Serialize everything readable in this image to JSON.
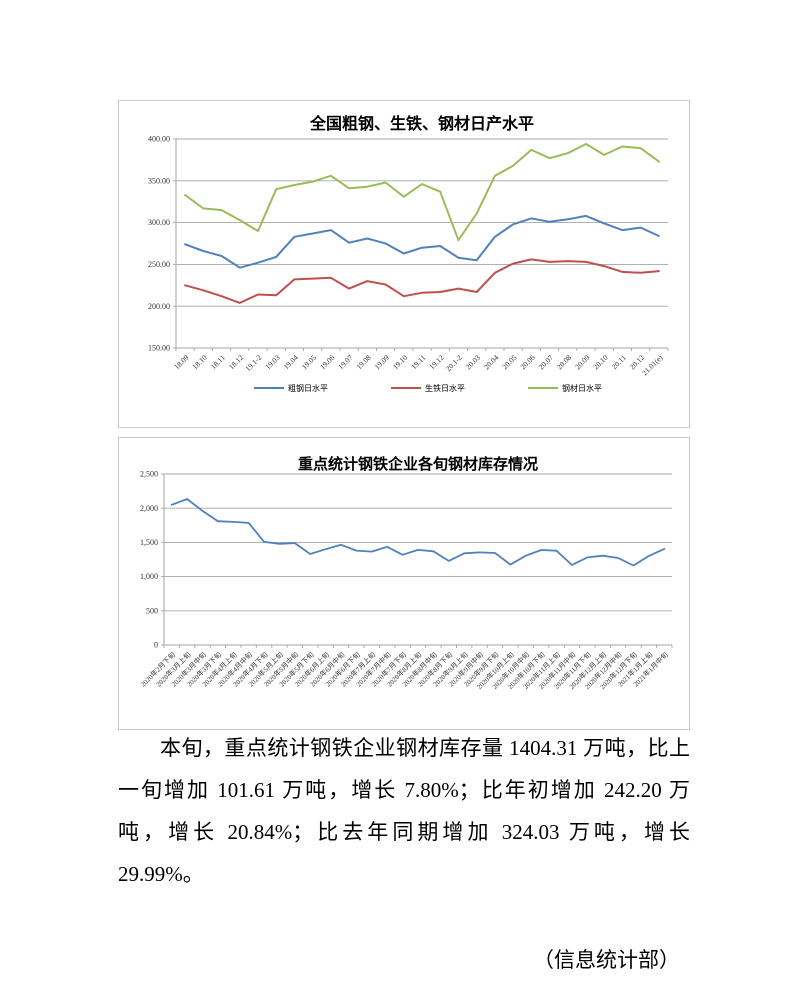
{
  "page": {
    "paragraph": "本旬，重点统计钢铁企业钢材库存量 1404.31 万吨，比上一旬增加 101.61 万吨，增长 7.80%；比年初增加 242.20 万吨，增长 20.84%；比去年同期增加 324.03 万吨，增长 29.99%。",
    "signature": "（信息统计部）"
  },
  "colors": {
    "crude_steel": "#4F81BD",
    "pig_iron": "#C0504D",
    "steel_products": "#9BBB59",
    "gridline": "#a6a6a6",
    "chart_border": "#c9c9c9"
  },
  "chart_data": [
    {
      "type": "line",
      "title": "全国粗钢、生铁、钢材日产水平",
      "xlabel": "",
      "ylabel": "",
      "ylim": [
        150,
        400
      ],
      "ytick_step": 50,
      "ytick_labels": [
        "150.00",
        "200.00",
        "250.00",
        "300.00",
        "350.00",
        "400.00"
      ],
      "grid": true,
      "legend_position": "bottom",
      "categories": [
        "18.09",
        "18.10",
        "18.11",
        "18.12",
        "19.1-2",
        "19.03",
        "19.04",
        "19.05",
        "19.06",
        "19.07",
        "19.08",
        "19.09",
        "19.10",
        "19.11",
        "19.12",
        "20.1-2",
        "20.03",
        "20.04",
        "20.05",
        "20.06",
        "20.07",
        "20.08",
        "20.09",
        "20.10",
        "20.11",
        "20.12",
        "21.01(e)"
      ],
      "series": [
        {
          "name": "粗钢日水平",
          "color": "#4F81BD",
          "values": [
            274,
            266,
            260,
            246,
            252,
            259,
            283,
            287,
            291,
            276,
            281,
            275,
            263,
            270,
            272,
            258,
            255,
            283,
            298,
            305,
            301,
            304,
            308,
            299,
            291,
            294,
            284
          ]
        },
        {
          "name": "生铁日水平",
          "color": "#C0504D",
          "values": [
            225,
            219,
            212,
            204,
            214,
            213,
            232,
            233,
            234,
            221,
            230,
            226,
            212,
            216,
            217,
            221,
            217,
            240,
            251,
            256,
            253,
            254,
            253,
            248,
            241,
            240,
            242
          ]
        },
        {
          "name": "钢材日水平",
          "color": "#9BBB59",
          "values": [
            333,
            317,
            315,
            303,
            290,
            340,
            345,
            349,
            356,
            341,
            343,
            348,
            331,
            346,
            337,
            279,
            311,
            356,
            368,
            387,
            377,
            383,
            394,
            381,
            391,
            389,
            373
          ]
        }
      ]
    },
    {
      "type": "line",
      "title": "重点统计钢铁企业各旬钢材库存情况",
      "xlabel": "",
      "ylabel": "",
      "ylim": [
        0,
        2500
      ],
      "ytick_step": 500,
      "ytick_labels": [
        "0",
        "500",
        "1,000",
        "1,500",
        "2,000",
        "2,500"
      ],
      "grid": true,
      "legend_position": "none",
      "categories": [
        "2020年2月下旬",
        "2020年3月上旬",
        "2020年3月中旬",
        "2020年3月下旬",
        "2020年4月上旬",
        "2020年4月中旬",
        "2020年4月下旬",
        "2020年5月上旬",
        "2020年5月中旬",
        "2020年5月下旬",
        "2020年6月上旬",
        "2020年6月中旬",
        "2020年6月下旬",
        "2020年7月上旬",
        "2020年7月中旬",
        "2020年7月下旬",
        "2020年8月上旬",
        "2020年8月中旬",
        "2020年8月下旬",
        "2020年9月上旬",
        "2020年9月中旬",
        "2020年9月下旬",
        "2020年10月上旬",
        "2020年10月中旬",
        "2020年10月下旬",
        "2020年11月上旬",
        "2020年11月中旬",
        "2020年11月下旬",
        "2020年12月上旬",
        "2020年12月中旬",
        "2020年12月下旬",
        "2021年1月上旬",
        "2021年1月中旬"
      ],
      "series": [
        {
          "name": "钢材库存",
          "color": "#4F81BD",
          "values": [
            2050,
            2135,
            1960,
            1810,
            1800,
            1785,
            1508,
            1480,
            1490,
            1330,
            1400,
            1465,
            1380,
            1365,
            1435,
            1318,
            1390,
            1370,
            1230,
            1340,
            1354,
            1345,
            1175,
            1306,
            1389,
            1379,
            1169,
            1281,
            1306,
            1272,
            1162.11,
            1302.7,
            1404.31
          ]
        }
      ]
    }
  ]
}
